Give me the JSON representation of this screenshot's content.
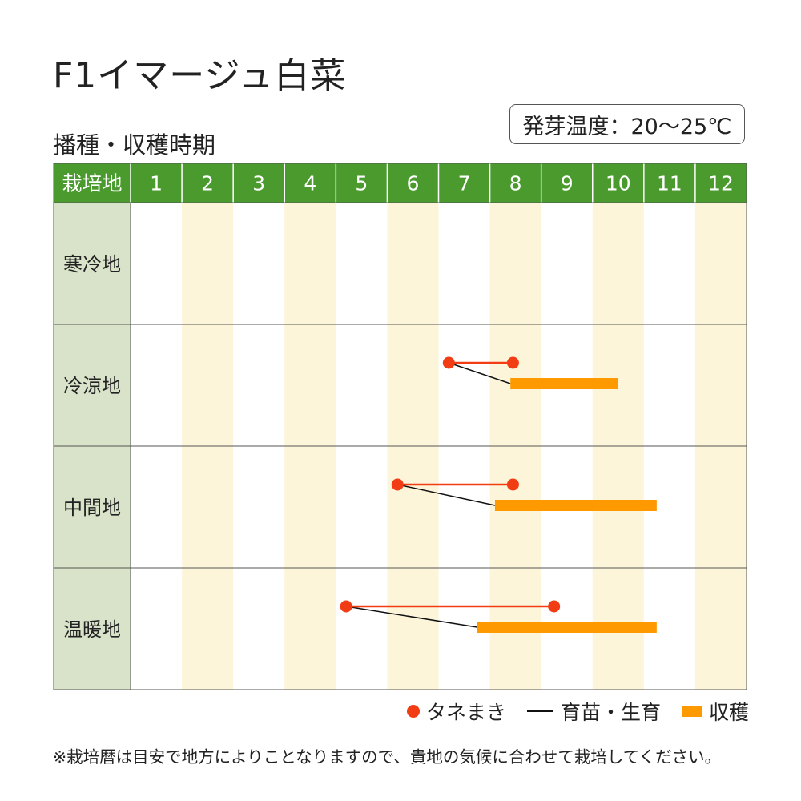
{
  "title": "F1イマージュ白菜",
  "subtitle": "播種・収穫時期",
  "temperature": "発芽温度：20～25℃",
  "legend": {
    "sowing": "タネまき",
    "growing": "育苗・生育",
    "harvest": "収穫"
  },
  "note": "※栽培暦は目安で地方によりことなりますので、貴地の気候に合わせて栽培してください。",
  "colors": {
    "header_green": "#4a9a2e",
    "label_column": "#d9e3c9",
    "stripe": "#fdf5d9",
    "sowing_red": "#f23d14",
    "harvest_orange": "#ff9900",
    "growing_line": "#111111"
  },
  "chart_data": {
    "type": "gantt",
    "header_label": "栽培地",
    "months": [
      "1",
      "2",
      "3",
      "4",
      "5",
      "6",
      "7",
      "8",
      "9",
      "10",
      "11",
      "12"
    ],
    "regions": [
      {
        "name": "寒冷地",
        "sowing": null,
        "harvest": null
      },
      {
        "name": "冷涼地",
        "sowing": [
          7.2,
          8.45
        ],
        "harvest": [
          8.4,
          10.5
        ]
      },
      {
        "name": "中間地",
        "sowing": [
          6.2,
          8.45
        ],
        "harvest": [
          8.1,
          11.25
        ]
      },
      {
        "name": "温暖地",
        "sowing": [
          5.2,
          9.25
        ],
        "harvest": [
          7.75,
          11.25
        ]
      }
    ]
  }
}
